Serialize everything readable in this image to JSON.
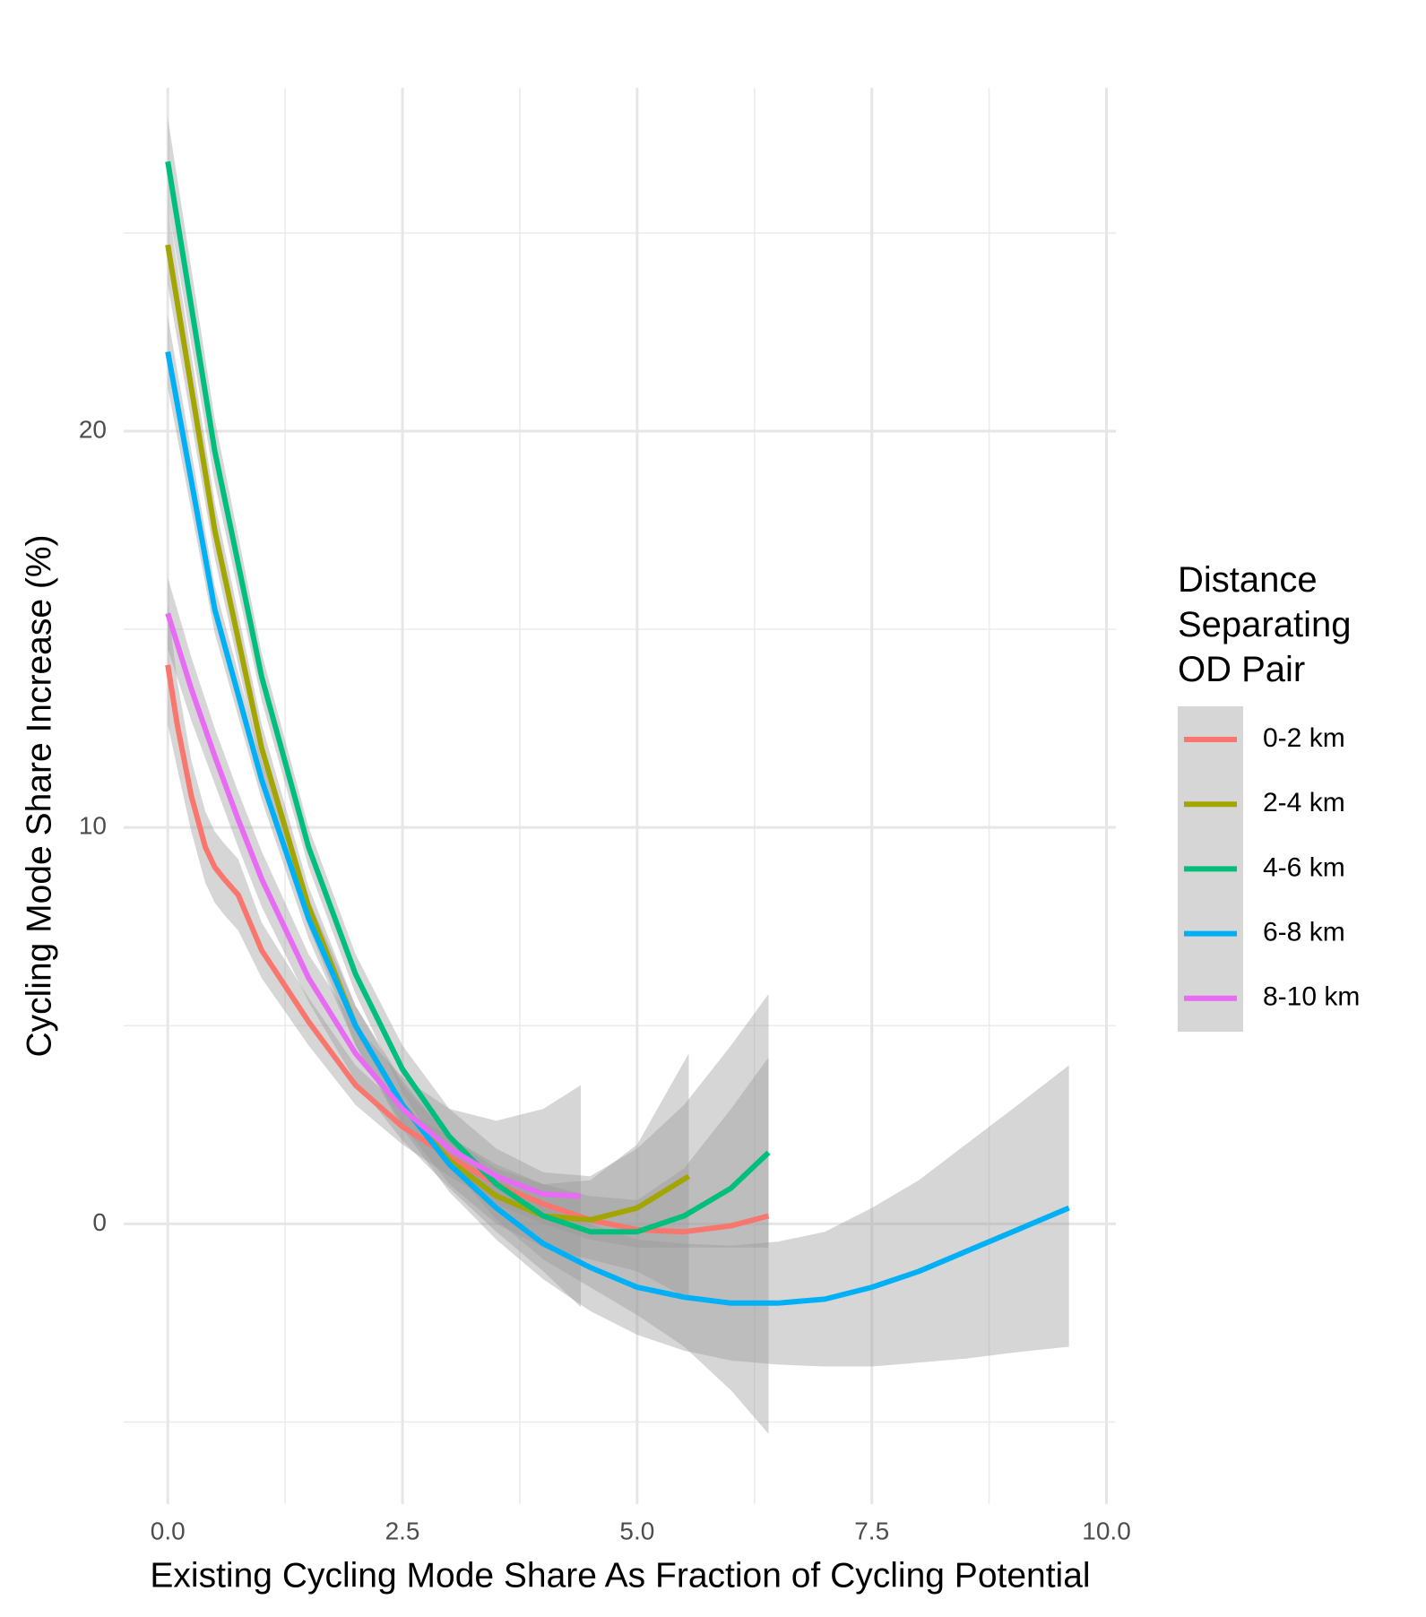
{
  "chart_data": {
    "type": "line",
    "x_label": "Existing Cycling Mode Share As Fraction of Cycling Potential",
    "y_label": "Cycling Mode Share Increase (%)",
    "legend_title": "Distance\nSeparating\nOD Pair",
    "legend_position": "right",
    "grid": true,
    "band_color": "#999999",
    "xlim": [
      -0.47,
      10.1
    ],
    "ylim": [
      -7.07,
      28.66
    ],
    "xticks": [
      {
        "value": 0,
        "label": "0.0"
      },
      {
        "value": 2.5,
        "label": "2.5"
      },
      {
        "value": 5,
        "label": "5.0"
      },
      {
        "value": 7.5,
        "label": "7.5"
      },
      {
        "value": 10,
        "label": "10.0"
      }
    ],
    "yticks": [
      0,
      10,
      20
    ],
    "minor_xticks": [
      1.25,
      3.75,
      6.25,
      8.75
    ],
    "minor_yticks": [
      -5,
      5,
      15,
      25
    ],
    "series": [
      {
        "name": "0-2 km",
        "color": "#F8766D",
        "x": [
          0,
          0.1,
          0.25,
          0.4,
          0.5,
          0.6,
          0.75,
          1,
          1.5,
          2,
          2.5,
          3,
          3.5,
          4,
          4.5,
          5,
          5.5,
          6,
          6.4
        ],
        "values": [
          14.1,
          12.6,
          10.8,
          9.5,
          9.0,
          8.7,
          8.3,
          6.9,
          5.1,
          3.5,
          2.45,
          1.7,
          1.0,
          0.5,
          0.1,
          -0.15,
          -0.2,
          -0.05,
          0.2
        ],
        "lower": [
          12.6,
          11.5,
          9.9,
          8.6,
          8.1,
          7.8,
          7.4,
          6.2,
          4.5,
          3.0,
          2.0,
          1.2,
          0.5,
          0.0,
          -0.4,
          -0.6,
          -0.6,
          -0.6,
          -0.6
        ],
        "upper": [
          15.6,
          13.7,
          11.7,
          10.4,
          9.9,
          9.6,
          9.2,
          7.6,
          5.7,
          4.0,
          2.9,
          2.2,
          1.5,
          1.0,
          0.7,
          0.6,
          1.4,
          2.9,
          4.2
        ]
      },
      {
        "name": "2-4 km",
        "color": "#A3A500",
        "x": [
          0,
          0.5,
          1,
          1.5,
          2,
          2.5,
          3,
          3.5,
          4,
          4.5,
          5,
          5.55
        ],
        "values": [
          24.7,
          17.5,
          12.0,
          8.0,
          5.0,
          3.0,
          1.6,
          0.7,
          0.2,
          0.1,
          0.4,
          1.2
        ],
        "lower": [
          23.7,
          16.8,
          11.4,
          7.5,
          4.5,
          2.5,
          1.0,
          0.0,
          -0.6,
          -0.9,
          -1.2,
          -1.9
        ],
        "upper": [
          25.7,
          18.2,
          12.6,
          8.5,
          5.5,
          3.5,
          2.2,
          1.4,
          1.0,
          1.1,
          2.0,
          4.3
        ]
      },
      {
        "name": "4-6 km",
        "color": "#00BF7D",
        "x": [
          0,
          0.5,
          1,
          1.5,
          2,
          2.5,
          3,
          3.5,
          4,
          4.5,
          5,
          5.5,
          6,
          6.4
        ],
        "values": [
          26.8,
          19.5,
          13.8,
          9.5,
          6.3,
          3.9,
          2.2,
          1.0,
          0.2,
          -0.2,
          -0.2,
          0.2,
          0.9,
          1.8
        ],
        "lower": [
          25.7,
          18.7,
          13.2,
          9.0,
          5.8,
          3.3,
          1.5,
          0.1,
          -0.9,
          -1.6,
          -2.3,
          -3.1,
          -4.2,
          -5.3
        ],
        "upper": [
          27.9,
          20.3,
          14.4,
          10.0,
          6.8,
          4.5,
          2.9,
          1.9,
          1.3,
          1.2,
          1.9,
          3.0,
          4.5,
          5.8
        ]
      },
      {
        "name": "6-8 km",
        "color": "#00B0F6",
        "x": [
          0,
          0.5,
          1,
          1.5,
          2,
          2.5,
          3,
          3.5,
          4,
          4.5,
          5,
          5.5,
          6,
          6.5,
          7,
          7.5,
          8,
          8.5,
          9,
          9.6
        ],
        "values": [
          22.0,
          15.5,
          11.2,
          7.7,
          5.0,
          3.0,
          1.5,
          0.4,
          -0.5,
          -1.1,
          -1.6,
          -1.85,
          -2.0,
          -2.0,
          -1.9,
          -1.6,
          -1.2,
          -0.7,
          -0.2,
          0.4
        ],
        "lower": [
          21.1,
          14.9,
          10.7,
          7.2,
          4.5,
          2.4,
          0.8,
          -0.4,
          -1.4,
          -2.2,
          -2.8,
          -3.2,
          -3.45,
          -3.55,
          -3.6,
          -3.6,
          -3.5,
          -3.4,
          -3.25,
          -3.1
        ],
        "upper": [
          22.9,
          16.1,
          11.7,
          8.2,
          5.5,
          3.6,
          2.2,
          1.2,
          0.4,
          0.0,
          -0.4,
          -0.5,
          -0.55,
          -0.45,
          -0.2,
          0.4,
          1.1,
          2.0,
          2.9,
          4.0
        ]
      },
      {
        "name": "8-10 km",
        "color": "#E76BF3",
        "x": [
          0,
          0.25,
          0.5,
          0.75,
          1,
          1.5,
          2,
          2.5,
          3,
          3.5,
          4,
          4.4
        ],
        "values": [
          15.4,
          13.5,
          11.8,
          10.2,
          8.7,
          6.2,
          4.3,
          2.9,
          1.9,
          1.2,
          0.75,
          0.7
        ],
        "lower": [
          14.5,
          12.7,
          11.1,
          9.5,
          8.0,
          5.6,
          3.6,
          2.1,
          0.9,
          -0.2,
          -1.2,
          -2.1
        ],
        "upper": [
          16.3,
          14.3,
          12.5,
          10.9,
          9.4,
          6.8,
          5.0,
          3.7,
          2.9,
          2.6,
          2.9,
          3.5
        ]
      }
    ]
  }
}
